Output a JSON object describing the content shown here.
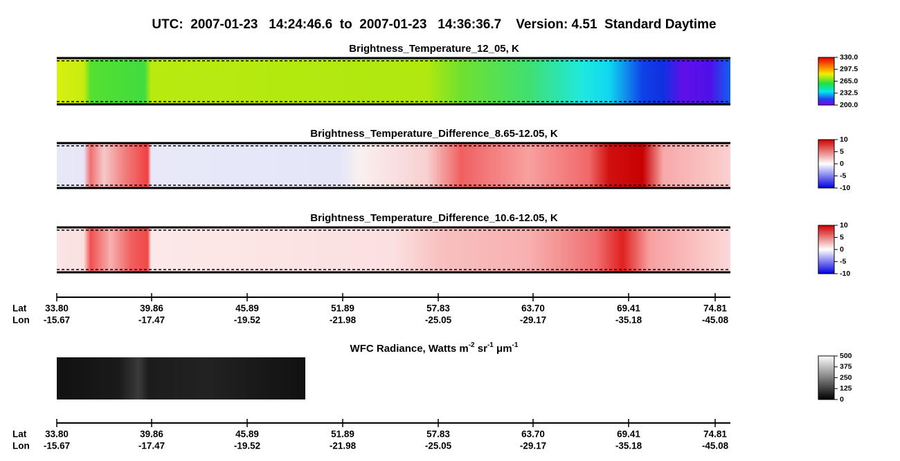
{
  "header": {
    "title": "UTC:  2007-01-23   14:24:46.6  to  2007-01-23   14:36:36.7    Version: 4.51  Standard Daytime"
  },
  "panels": [
    {
      "title": "Brightness_Temperature_12_05, K",
      "colorbar": [
        "330.0",
        "297.5",
        "265.0",
        "232.5",
        "200.0"
      ]
    },
    {
      "title": "Brightness_Temperature_Difference_8.65-12.05, K",
      "colorbar": [
        "10",
        "5",
        "0",
        "-5",
        "-10"
      ]
    },
    {
      "title": "Brightness_Temperature_Difference_10.6-12.05, K",
      "colorbar": [
        "10",
        "5",
        "0",
        "-5",
        "-10"
      ]
    }
  ],
  "axis_top": {
    "lat_label": "Lat",
    "lon_label": "Lon",
    "lat": [
      "33.80",
      "39.86",
      "45.89",
      "51.89",
      "57.83",
      "63.70",
      "69.41",
      "74.81"
    ],
    "lon": [
      "-15.67",
      "-17.47",
      "-19.52",
      "-21.98",
      "-25.05",
      "-29.17",
      "-35.18",
      "-45.08"
    ]
  },
  "wfc": {
    "title_parts": [
      "WFC Radiance, Watts m",
      "-2",
      " sr",
      "-1",
      " μm",
      "-1"
    ],
    "colorbar": [
      "500",
      "375",
      "250",
      "125",
      "0"
    ]
  },
  "axis_bottom": {
    "lat_label": "Lat",
    "lon_label": "Lon",
    "lat": [
      "33.80",
      "39.86",
      "45.89",
      "51.89",
      "57.83",
      "63.70",
      "69.41",
      "74.81"
    ],
    "lon": [
      "-15.67",
      "-17.47",
      "-19.52",
      "-21.98",
      "-25.05",
      "-29.17",
      "-35.18",
      "-45.08"
    ]
  }
}
